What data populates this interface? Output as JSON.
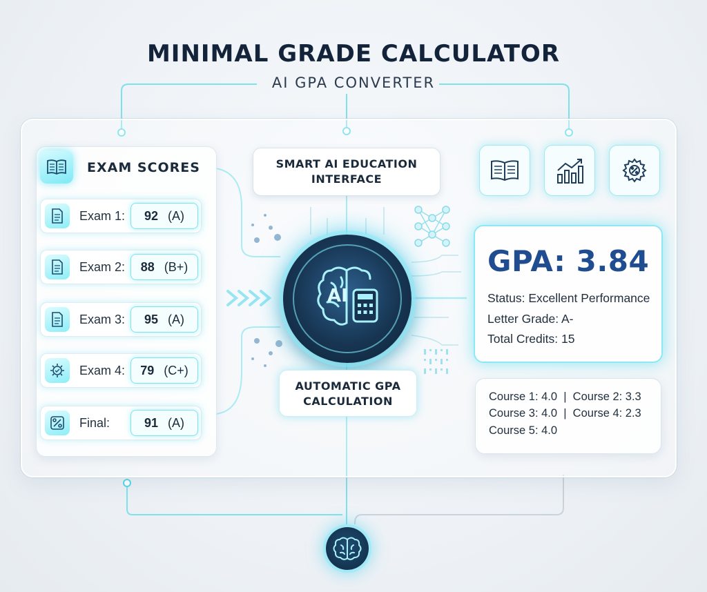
{
  "header": {
    "title": "MINIMAL GRADE CALCULATOR",
    "subtitle": "AI GPA CONVERTER"
  },
  "exam_scores": {
    "title": "EXAM SCORES",
    "icon": "book-icon",
    "items": [
      {
        "label": "Exam 1:",
        "score": "92",
        "grade": "(A)",
        "icon": "document-icon"
      },
      {
        "label": "Exam 2:",
        "score": "88",
        "grade": "(B+)",
        "icon": "document-icon"
      },
      {
        "label": "Exam 3:",
        "score": "95",
        "grade": "(A)",
        "icon": "document-icon"
      },
      {
        "label": "Exam 4:",
        "score": "79",
        "grade": "(C+)",
        "icon": "gear-check-icon"
      },
      {
        "label": "Final:",
        "score": "91",
        "grade": "(A)",
        "icon": "percent-icon"
      }
    ]
  },
  "center": {
    "interface_label_line1": "SMART AI EDUCATION",
    "interface_label_line2": "INTERFACE",
    "core_label": "AI",
    "calculation_label_line1": "AUTOMATIC GPA",
    "calculation_label_line2": "CALCULATION"
  },
  "toolbar": {
    "icons": [
      "book-icon",
      "chart-icon",
      "settings-icon"
    ]
  },
  "result": {
    "gpa": "GPA: 3.84",
    "status": "Status: Excellent Performance",
    "letter_grade": "Letter Grade: A-",
    "total_credits": "Total Credits: 15"
  },
  "courses": {
    "line1": "Course 1: 4.0  |  Course 2: 3.3",
    "line2": "Course 3: 4.0  |  Course 4: 2.3",
    "line3": "Course 5: 4.0"
  },
  "colors": {
    "accent": "#5fe1f0",
    "gpa_text": "#1f4d8f",
    "core_dark": "#173552"
  }
}
